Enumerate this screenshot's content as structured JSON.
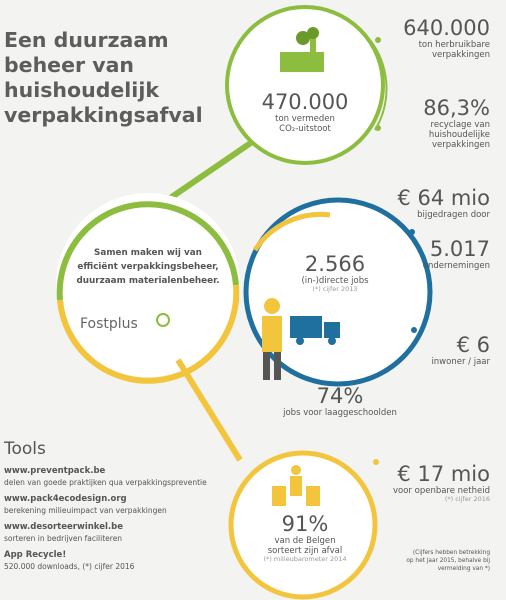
{
  "title": {
    "lines": [
      "Een duurzaam",
      "beheer van",
      "huishoudelijk",
      "verpakkingsafval"
    ]
  },
  "stats": [
    {
      "value": "640.000",
      "label": [
        "ton herbruikbare",
        "verpakkingen"
      ]
    },
    {
      "value": "470.000",
      "label": [
        "ton vermeden",
        "CO₂-uitstoot"
      ]
    },
    {
      "value": "86,3%",
      "label": [
        "recyclage van",
        "huishoudelijke",
        "verpakkingen"
      ]
    },
    {
      "value": "€ 64 mio",
      "label": [
        "bijgedragen door"
      ]
    },
    {
      "value": "5.017",
      "label": [
        "ondernemingen"
      ]
    },
    {
      "value": "2.566",
      "label": [
        "(in-)directe jobs"
      ],
      "note": "(*) cijfer 2013"
    },
    {
      "value": "€ 6",
      "label": [
        "inwoner / jaar"
      ]
    },
    {
      "value": "74%",
      "label": [
        "jobs voor laaggeschoolden"
      ]
    },
    {
      "value": "€ 17 mio",
      "label": [
        "voor openbare netheid"
      ],
      "note": "(*) cijfer 2016"
    },
    {
      "value": "91%",
      "label": [
        "van de Belgen",
        "sorteert zijn afval"
      ],
      "note": "(*) milieubarometer 2014"
    }
  ],
  "mission": {
    "lines": [
      "Samen maken wij van",
      "efficiënt verpakkingsbeheer,",
      "duurzaam materialenbeheer."
    ],
    "logo": "Fostplus"
  },
  "tools": {
    "heading": "Tools",
    "items": [
      {
        "name": "www.preventpack.be",
        "description": "delen van goede praktijken qua verpakkingspreventie"
      },
      {
        "name": "www.pack4ecodesign.org",
        "description": "berekening milieuimpact van verpakkingen"
      },
      {
        "name": "www.desorteerwinkel.be",
        "description": "sorteren in bedrijven faciliteren"
      },
      {
        "name": "App Recycle!",
        "description": "520.000 downloads, (*) cijfer 2016"
      }
    ]
  },
  "footnote": {
    "lines": [
      "(Cijfers hebben betrekking",
      "op het jaar 2015, behalve bij",
      "vermelding van *)"
    ]
  }
}
